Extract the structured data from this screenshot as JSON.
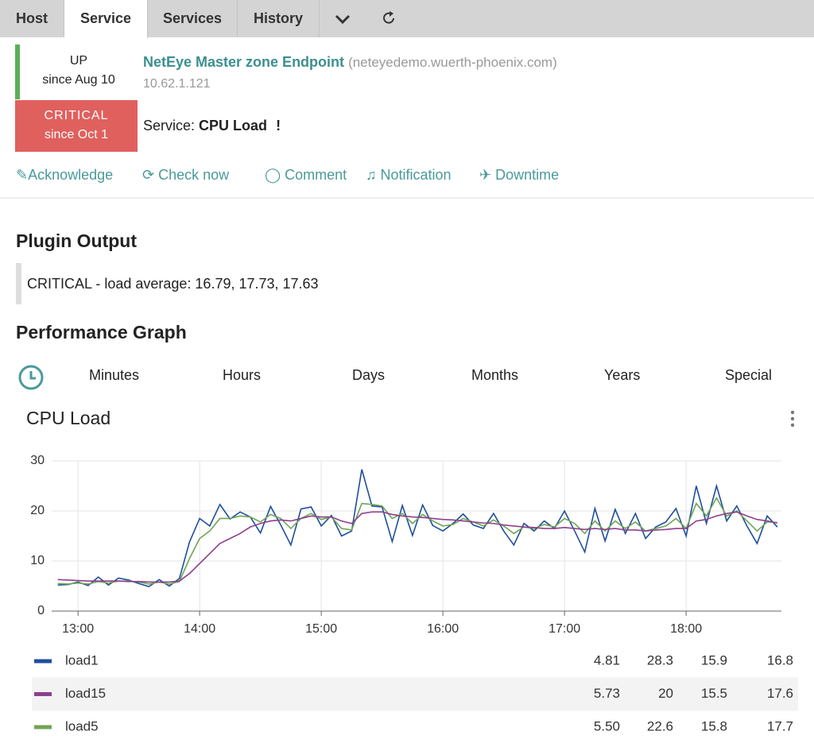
{
  "tabs": [
    "Host",
    "Service",
    "Services",
    "History"
  ],
  "host": {
    "state": "UP",
    "since": "since Aug 10",
    "name": "NetEye Master zone Endpoint",
    "fqdn": "(neteyedemo.wuerth-phoenix.com)",
    "address": "10.62.1.121"
  },
  "service": {
    "state": "CRITICAL",
    "since": "since Oct 1",
    "label": "Service:",
    "name": "CPU Load",
    "flag": "!"
  },
  "actions": [
    "Acknowledge",
    "Check now",
    "Comment",
    "Notification",
    "Downtime"
  ],
  "plugin_output": {
    "heading": "Plugin Output",
    "text": "CRITICAL - load average: 16.79, 17.73, 17.63"
  },
  "performance": {
    "heading": "Performance Graph",
    "ranges": [
      "Minutes",
      "Hours",
      "Days",
      "Months",
      "Years",
      "Special"
    ]
  },
  "chart_data": {
    "type": "line",
    "title": "CPU Load",
    "x": [
      770,
      775,
      780,
      785,
      790,
      795,
      800,
      805,
      810,
      815,
      820,
      825,
      830,
      835,
      840,
      845,
      850,
      855,
      860,
      865,
      870,
      875,
      880,
      885,
      890,
      895,
      900,
      905,
      910,
      915,
      920,
      925,
      930,
      935,
      940,
      945,
      950,
      955,
      960,
      965,
      970,
      975,
      980,
      985,
      990,
      995,
      1000,
      1005,
      1010,
      1015,
      1020,
      1025,
      1030,
      1035,
      1040,
      1045,
      1050,
      1055,
      1060,
      1065,
      1070,
      1075,
      1080,
      1085,
      1090,
      1095,
      1100,
      1105,
      1110,
      1115,
      1120,
      1125
    ],
    "xlim": [
      767,
      1127
    ],
    "xticks": [
      {
        "value": 780,
        "label": "13:00"
      },
      {
        "value": 840,
        "label": "14:00"
      },
      {
        "value": 900,
        "label": "15:00"
      },
      {
        "value": 960,
        "label": "16:00"
      },
      {
        "value": 1020,
        "label": "17:00"
      },
      {
        "value": 1080,
        "label": "18:00"
      }
    ],
    "ylim": [
      0,
      30
    ],
    "yticks": [
      0,
      10,
      20,
      30
    ],
    "grid": true,
    "series": [
      {
        "name": "load1",
        "color": "#1f4e9c",
        "values": [
          5.2,
          5.3,
          5.8,
          5.1,
          6.8,
          5.2,
          6.6,
          6.2,
          5.5,
          4.9,
          6.3,
          5.0,
          6.5,
          13.8,
          18.5,
          17.0,
          21.3,
          18.4,
          19.8,
          18.8,
          15.6,
          20.9,
          17.2,
          13.2,
          20.4,
          20.8,
          17.0,
          19.1,
          15.0,
          16.0,
          28.3,
          21.0,
          20.8,
          13.9,
          21.1,
          15.1,
          21.2,
          17.1,
          16.0,
          17.5,
          19.4,
          17.2,
          16.5,
          19.5,
          16.0,
          13.2,
          17.5,
          16.0,
          18.0,
          16.5,
          20.0,
          16.0,
          11.8,
          20.5,
          14.0,
          20.3,
          15.5,
          19.5,
          14.5,
          16.8,
          17.8,
          20.5,
          15.0,
          25.0,
          17.5,
          25.0,
          18.0,
          21.0,
          17.0,
          13.5,
          19.0,
          16.8
        ]
      },
      {
        "name": "load15",
        "color": "#8e3f8e",
        "values": [
          6.3,
          6.2,
          6.1,
          6.0,
          6.0,
          6.0,
          6.0,
          5.9,
          5.9,
          5.8,
          5.8,
          5.8,
          6.0,
          7.5,
          9.5,
          11.5,
          13.5,
          14.5,
          15.5,
          16.8,
          17.5,
          18.0,
          18.2,
          18.0,
          18.5,
          19.0,
          18.8,
          18.8,
          18.0,
          17.5,
          19.5,
          19.8,
          19.8,
          19.3,
          19.0,
          18.8,
          18.7,
          18.5,
          18.3,
          18.2,
          18.0,
          17.8,
          17.6,
          17.5,
          17.2,
          17.0,
          16.8,
          16.7,
          16.5,
          16.5,
          16.7,
          16.5,
          16.3,
          16.5,
          16.3,
          16.5,
          16.2,
          16.2,
          16.0,
          16.2,
          16.3,
          16.5,
          16.5,
          18.0,
          18.3,
          19.0,
          19.5,
          19.8,
          19.0,
          18.3,
          18.0,
          17.6
        ]
      },
      {
        "name": "load5",
        "color": "#6fa556",
        "values": [
          5.5,
          5.4,
          5.6,
          5.4,
          5.9,
          5.6,
          6.0,
          6.0,
          5.8,
          5.4,
          5.8,
          5.4,
          5.9,
          10.5,
          14.5,
          16.0,
          18.5,
          18.5,
          19.0,
          18.8,
          17.8,
          19.3,
          18.5,
          16.5,
          18.5,
          19.5,
          18.3,
          18.8,
          16.5,
          16.2,
          21.5,
          21.3,
          21.0,
          18.5,
          19.5,
          17.5,
          19.3,
          18.0,
          17.0,
          17.3,
          18.5,
          17.8,
          17.0,
          18.2,
          17.0,
          15.5,
          16.8,
          16.5,
          17.3,
          16.8,
          18.5,
          17.5,
          15.5,
          18.0,
          16.0,
          18.0,
          16.5,
          17.8,
          16.0,
          16.5,
          17.0,
          18.5,
          16.5,
          21.5,
          19.0,
          22.6,
          19.0,
          20.0,
          18.0,
          16.0,
          17.8,
          17.7
        ]
      }
    ],
    "summary": [
      [
        "4.81",
        "28.3",
        "15.9",
        "16.8"
      ],
      [
        "5.73",
        "20",
        "15.5",
        "17.6"
      ],
      [
        "5.50",
        "22.6",
        "15.8",
        "17.7"
      ]
    ]
  }
}
